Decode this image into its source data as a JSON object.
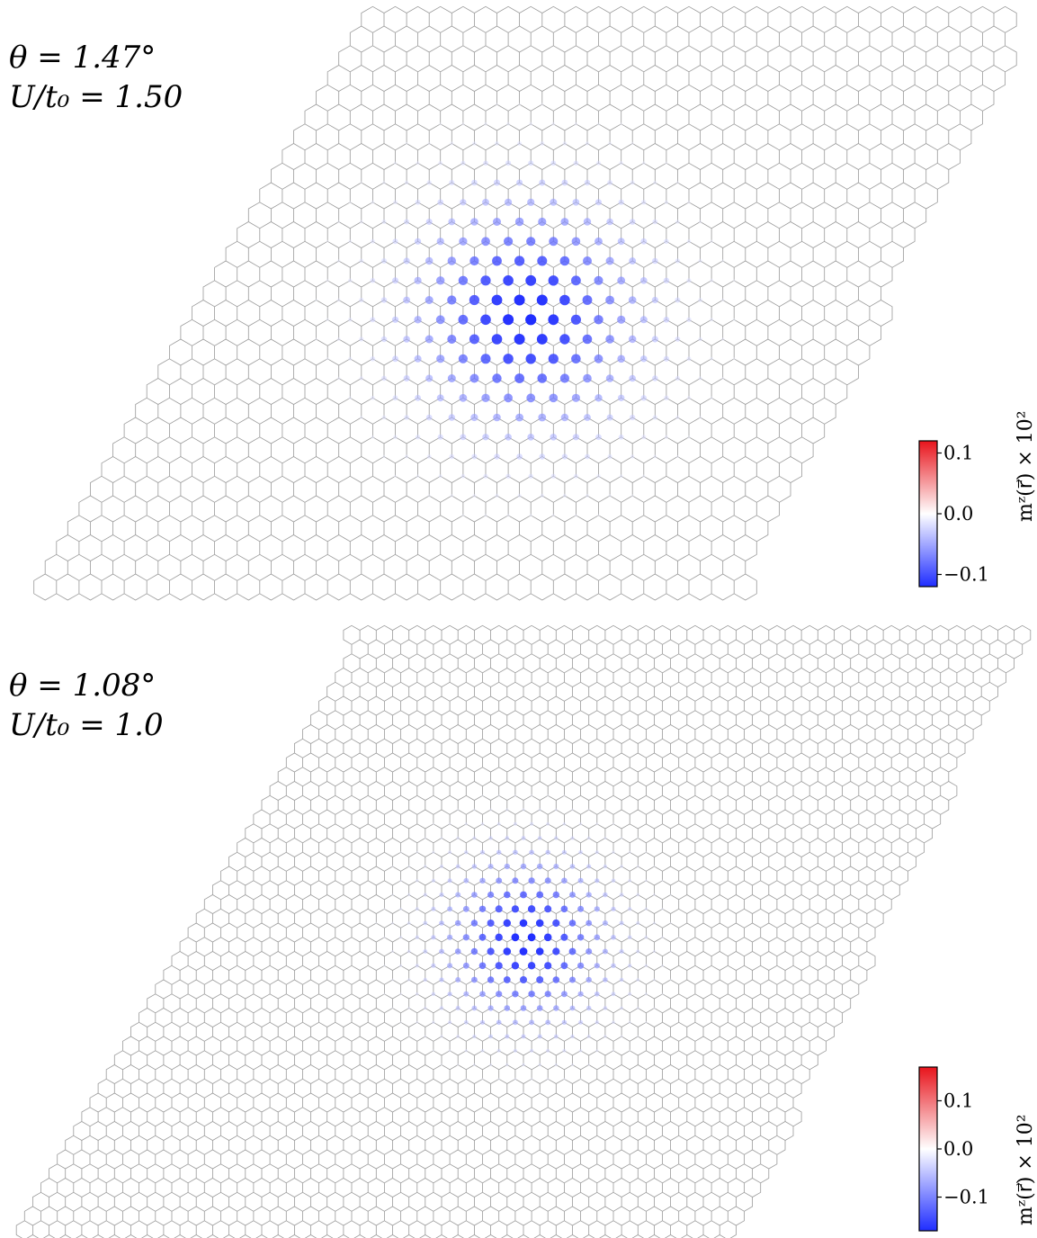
{
  "colors": {
    "positive": "#e8141c",
    "zero": "#ffffff",
    "negative": "#1f2dff",
    "lattice": "#9a9a9a"
  },
  "panels": [
    {
      "theta_label": "θ = 1.47°",
      "u_label": "U/t₀ = 1.50",
      "colorbar": {
        "label": "mᶻ(r⃗) × 10²",
        "ticks": [
          "0.1",
          "0.0",
          "−0.1"
        ],
        "tick_values": [
          0.1,
          0.0,
          -0.1
        ],
        "vmin": -0.12,
        "vmax": 0.12
      }
    },
    {
      "theta_label": "θ = 1.08°",
      "u_label": "U/t₀ = 1.0",
      "colorbar": {
        "label": "mᶻ(r⃗) × 10²",
        "ticks": [
          "0.1",
          "0.0",
          "−0.1"
        ],
        "tick_values": [
          0.1,
          0.0,
          -0.1
        ],
        "vmin": -0.17,
        "vmax": 0.17
      }
    }
  ]
}
